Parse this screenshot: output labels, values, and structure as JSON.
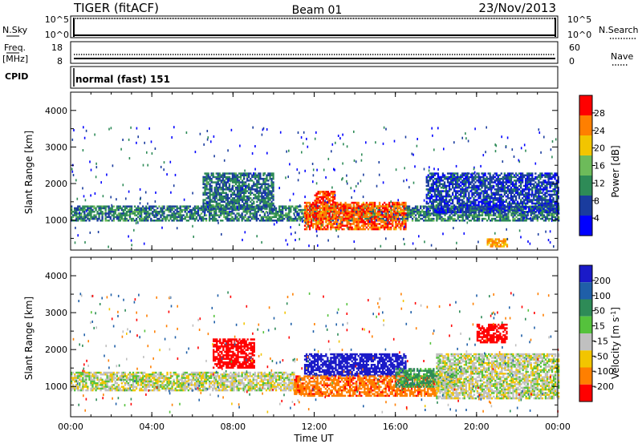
{
  "header": {
    "radar": "TIGER (fitACF)",
    "beam": "Beam 01",
    "date": "23/Nov/2013"
  },
  "strip_sky": {
    "left_label": "N.Sky",
    "right_label": "N.Search",
    "left_ticks": [
      {
        "base": "10",
        "exp": "^5"
      },
      {
        "base": "10",
        "exp": "^0"
      }
    ],
    "right_ticks": [
      {
        "base": "10",
        "exp": "^5"
      },
      {
        "base": "10",
        "exp": "^0"
      }
    ]
  },
  "strip_freq": {
    "left_label_1": "Freq.",
    "left_label_2": "[MHz]",
    "right_label": "Nave",
    "left_ticks": [
      "18",
      "8"
    ],
    "right_ticks": [
      "60",
      "0"
    ]
  },
  "strip_cpid": {
    "label": "CPID",
    "value": "normal (fast) 151"
  },
  "chart_data": [
    {
      "type": "heatmap",
      "name": "Power",
      "ylabel": "Slant Range [km]",
      "xlabel": "Time UT",
      "x_ticks": [
        "00:00",
        "04:00",
        "08:00",
        "12:00",
        "16:00",
        "20:00",
        "00:00"
      ],
      "x_range_hours": [
        0,
        24
      ],
      "y_ticks": [
        1000,
        2000,
        3000,
        4000
      ],
      "ylim": [
        180,
        4500
      ],
      "colorbar": {
        "label": "Power [dB]",
        "ticks": [
          "4",
          "8",
          "12",
          "16",
          "20",
          "24",
          "28"
        ],
        "range": [
          0,
          30
        ],
        "colors": [
          "#0000ff",
          "#1a3c9e",
          "#2e8b57",
          "#6dbb5a",
          "#f2c500",
          "#ff7f00",
          "#ff0000"
        ]
      },
      "regions": [
        {
          "from_h": 0.0,
          "to_h": 24.0,
          "range_km": [
            1000,
            1400
          ],
          "value_db": 10
        },
        {
          "from_h": 6.5,
          "to_h": 10.0,
          "range_km": [
            1300,
            2300
          ],
          "value_db": 9
        },
        {
          "from_h": 11.5,
          "to_h": 16.5,
          "range_km": [
            750,
            1500
          ],
          "value_db": 25
        },
        {
          "from_h": 12.0,
          "to_h": 13.0,
          "range_km": [
            1500,
            1800
          ],
          "value_db": 26
        },
        {
          "from_h": 17.5,
          "to_h": 24.0,
          "range_km": [
            1200,
            2300
          ],
          "value_db": 6
        },
        {
          "from_h": 20.5,
          "to_h": 21.5,
          "range_km": [
            300,
            500
          ],
          "value_db": 22
        }
      ]
    },
    {
      "type": "heatmap",
      "name": "Velocity",
      "ylabel": "Slant Range [km]",
      "xlabel": "Time UT",
      "x_ticks": [
        "00:00",
        "04:00",
        "08:00",
        "12:00",
        "16:00",
        "20:00",
        "00:00"
      ],
      "x_range_hours": [
        0,
        24
      ],
      "y_ticks": [
        1000,
        2000,
        3000,
        4000
      ],
      "ylim": [
        180,
        4500
      ],
      "colorbar": {
        "label_main": "Velocity [m s",
        "label_sup": "-1",
        "label_end": "]",
        "ticks": [
          "200",
          "100",
          "50",
          "15",
          "-15",
          "-50",
          "-100",
          "-200"
        ],
        "colors": [
          "#1a1ac8",
          "#1f5fa8",
          "#2e8b57",
          "#55c23c",
          "#c0c0c0",
          "#f2c500",
          "#ff7f00",
          "#ff0000"
        ]
      },
      "regions": [
        {
          "from_h": 0.0,
          "to_h": 11.0,
          "range_km": [
            900,
            1400
          ],
          "velocity": 0
        },
        {
          "from_h": 7.0,
          "to_h": 9.0,
          "range_km": [
            1500,
            2300
          ],
          "velocity": -180
        },
        {
          "from_h": 11.5,
          "to_h": 16.5,
          "range_km": [
            1300,
            1900
          ],
          "velocity": 180
        },
        {
          "from_h": 11.0,
          "to_h": 18.0,
          "range_km": [
            750,
            1300
          ],
          "velocity": -80
        },
        {
          "from_h": 16.0,
          "to_h": 19.0,
          "range_km": [
            1000,
            1500
          ],
          "velocity": 40
        },
        {
          "from_h": 18.0,
          "to_h": 24.0,
          "range_km": [
            700,
            1900
          ],
          "velocity": 0
        },
        {
          "from_h": 20.0,
          "to_h": 21.5,
          "range_km": [
            2200,
            2700
          ],
          "velocity": -150
        }
      ]
    }
  ]
}
